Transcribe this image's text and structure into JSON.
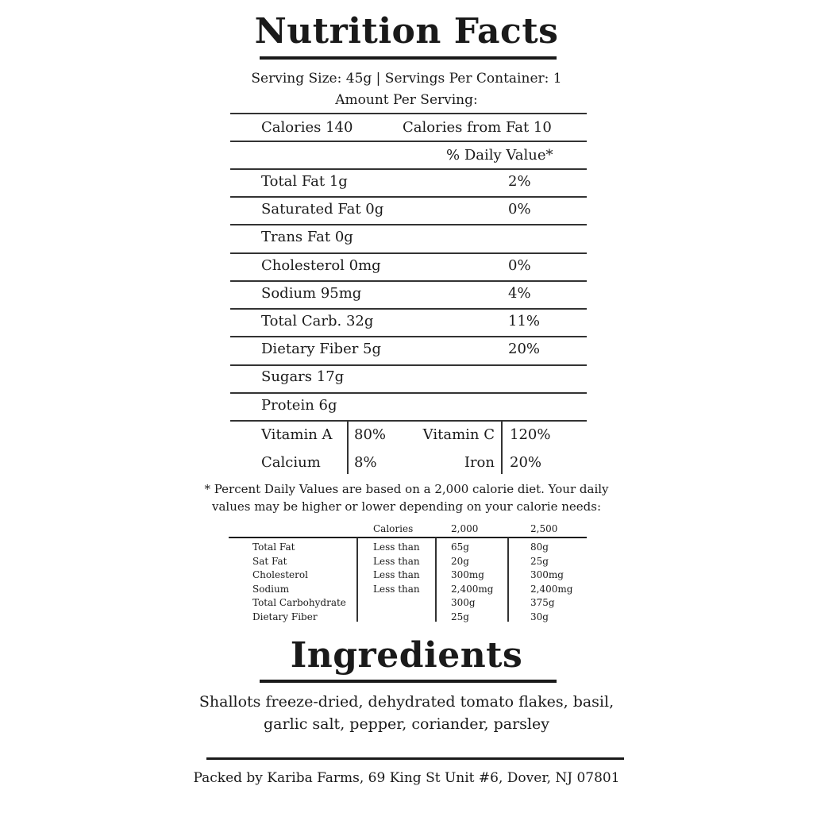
{
  "title": "Nutrition Facts",
  "serving_line": "Serving Size: 45g | Servings Per Container: 1",
  "amount_per_serving": "Amount Per Serving:",
  "calories": "Calories 140",
  "calories_from_fat": "Calories from Fat 10",
  "daily_value_header": "% Daily Value*",
  "nutrients": [
    {
      "label": "Total Fat 1g",
      "dv": "2%"
    },
    {
      "label": "Saturated Fat 0g",
      "dv": "0%"
    },
    {
      "label": "Trans Fat 0g",
      "dv": ""
    },
    {
      "label": "Cholesterol 0mg",
      "dv": "0%"
    },
    {
      "label": "Sodium 95mg",
      "dv": "4%"
    },
    {
      "label": "Total Carb. 32g",
      "dv": "11%"
    },
    {
      "label": "Dietary Fiber 5g",
      "dv": "20%"
    },
    {
      "label": "Sugars 17g",
      "dv": ""
    },
    {
      "label": "Protein 6g",
      "dv": ""
    }
  ],
  "vitamins": [
    {
      "left_label": "Vitamin A",
      "left_value": "80%",
      "right_label": "Vitamin C",
      "right_value": "120%"
    },
    {
      "left_label": "Calcium",
      "left_value": "8%",
      "right_label": "Iron",
      "right_value": "20%"
    }
  ],
  "footnote": [
    "* Percent Daily Values are based on a 2,000 calorie diet. Your daily",
    "values may be higher or lower depending on your calorie needs:"
  ],
  "reference_table": {
    "headers": [
      "",
      "Calories",
      "2,000",
      "2,500"
    ],
    "rows": [
      [
        "Total Fat",
        "Less than",
        "65g",
        "80g"
      ],
      [
        "Sat Fat",
        "Less than",
        "20g",
        "25g"
      ],
      [
        "Cholesterol",
        "Less than",
        "300mg",
        "300mg"
      ],
      [
        "Sodium",
        "Less than",
        "2,400mg",
        "2,400mg"
      ],
      [
        "Total Carbohydrate",
        "",
        "300g",
        "375g"
      ],
      [
        "Dietary Fiber",
        "",
        "25g",
        "30g"
      ]
    ]
  },
  "ingredients_title": "Ingredients",
  "ingredients": [
    "Shallots freeze-dried, dehydrated tomato flakes, basil,",
    "garlic salt, pepper, coriander, parsley"
  ],
  "footer": "Packed by Kariba Farms, 69 King St Unit #6, Dover, NJ 07801"
}
